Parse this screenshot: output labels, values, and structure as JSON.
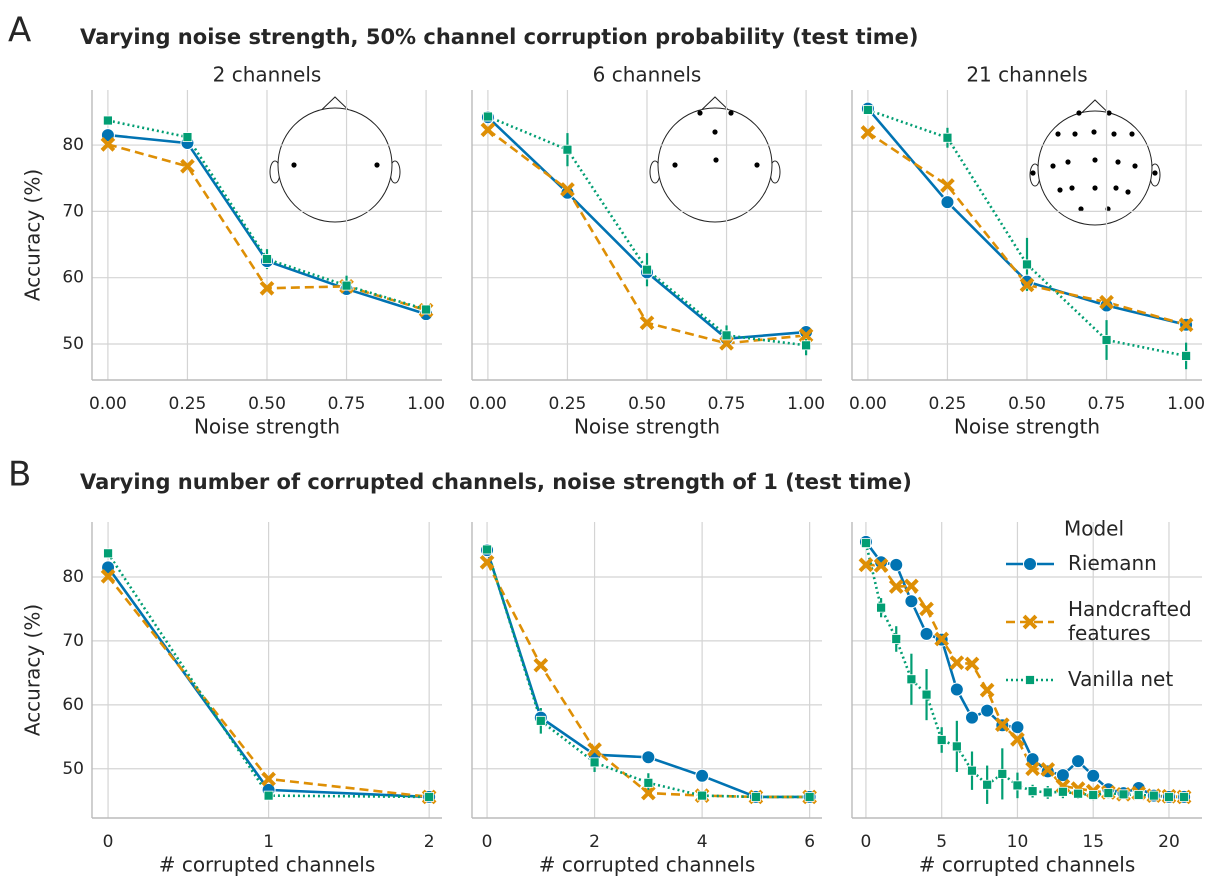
{
  "figure": {
    "panels": [
      {
        "label": "A",
        "title": "Varying noise strength, 50% channel corruption probability (test time)"
      },
      {
        "label": "B",
        "title": "Varying number of corrupted channels, noise strength of 1 (test time)"
      }
    ]
  },
  "chart_data": [
    {
      "type": "line",
      "title": "2 channels",
      "xlabel": "Noise strength",
      "ylabel": "Accuracy (%)",
      "x": [
        0,
        0.25,
        0.5,
        0.75,
        1
      ],
      "xlim": [
        -0.05,
        1.05
      ],
      "ylim": [
        44.57,
        88.3
      ],
      "xticks": [
        {
          "value": 0,
          "label": "0.00"
        },
        {
          "value": 0.25,
          "label": "0.25"
        },
        {
          "value": 0.5,
          "label": "0.50"
        },
        {
          "value": 0.75,
          "label": "0.75"
        },
        {
          "value": 1,
          "label": "1.00"
        }
      ],
      "yticks": [
        50,
        60,
        70,
        80
      ],
      "grid": true,
      "series": [
        {
          "name": "Riemann",
          "color": "#0173b2",
          "marker": "circle",
          "dash": "solid",
          "values": [
            81.5,
            80.3,
            62.5,
            58.3,
            54.5
          ]
        },
        {
          "name": "Handcrafted features",
          "color": "#de8f05",
          "marker": "x",
          "dash": "dashed",
          "values": [
            80.1,
            76.8,
            58.4,
            58.7,
            55.1
          ]
        },
        {
          "name": "Vanilla net",
          "color": "#029e73",
          "marker": "square",
          "dash": "dotted",
          "values": [
            83.7,
            81.2,
            62.8,
            58.8,
            55.2
          ],
          "errors": [
            0.5,
            0.5,
            1.5,
            1.5,
            0.5
          ]
        }
      ]
    },
    {
      "type": "line",
      "title": "6 channels",
      "xlabel": "Noise strength",
      "x": [
        0,
        0.25,
        0.5,
        0.75,
        1
      ],
      "xlim": [
        -0.05,
        1.05
      ],
      "ylim": [
        44.57,
        88.3
      ],
      "xticks": [
        {
          "value": 0,
          "label": "0.00"
        },
        {
          "value": 0.25,
          "label": "0.25"
        },
        {
          "value": 0.5,
          "label": "0.50"
        },
        {
          "value": 0.75,
          "label": "0.75"
        },
        {
          "value": 1,
          "label": "1.00"
        }
      ],
      "yticks": [
        50,
        60,
        70,
        80
      ],
      "grid": true,
      "series": [
        {
          "name": "Riemann",
          "color": "#0173b2",
          "marker": "circle",
          "dash": "solid",
          "values": [
            84.2,
            72.8,
            60.8,
            50.8,
            51.8
          ]
        },
        {
          "name": "Handcrafted features",
          "color": "#de8f05",
          "marker": "x",
          "dash": "dashed",
          "values": [
            82.3,
            73.3,
            53.2,
            50.1,
            51.3
          ]
        },
        {
          "name": "Vanilla net",
          "color": "#029e73",
          "marker": "square",
          "dash": "dotted",
          "values": [
            84.3,
            79.3,
            61.2,
            51.3,
            49.8
          ],
          "errors": [
            0.5,
            2.5,
            2.5,
            1.5,
            1.5
          ]
        }
      ]
    },
    {
      "type": "line",
      "title": "21 channels",
      "xlabel": "Noise strength",
      "x": [
        0,
        0.25,
        0.5,
        0.75,
        1
      ],
      "xlim": [
        -0.05,
        1.05
      ],
      "ylim": [
        44.57,
        88.3
      ],
      "xticks": [
        {
          "value": 0,
          "label": "0.00"
        },
        {
          "value": 0.25,
          "label": "0.25"
        },
        {
          "value": 0.5,
          "label": "0.50"
        },
        {
          "value": 0.75,
          "label": "0.75"
        },
        {
          "value": 1,
          "label": "1.00"
        }
      ],
      "yticks": [
        50,
        60,
        70,
        80
      ],
      "grid": true,
      "series": [
        {
          "name": "Riemann",
          "color": "#0173b2",
          "marker": "circle",
          "dash": "solid",
          "values": [
            85.5,
            71.4,
            59.4,
            55.8,
            52.9
          ]
        },
        {
          "name": "Handcrafted features",
          "color": "#de8f05",
          "marker": "x",
          "dash": "dashed",
          "values": [
            81.9,
            73.9,
            58.9,
            56.3,
            52.9
          ]
        },
        {
          "name": "Vanilla net",
          "color": "#029e73",
          "marker": "square",
          "dash": "dotted",
          "values": [
            85.3,
            81.1,
            62.0,
            50.6,
            48.2
          ],
          "errors": [
            0.5,
            1.5,
            4,
            3,
            2
          ]
        }
      ]
    },
    {
      "type": "line",
      "xlabel": "# corrupted channels",
      "ylabel": "Accuracy (%)",
      "x": [
        0,
        1,
        2
      ],
      "xlim": [
        -0.1,
        2.08
      ],
      "ylim": [
        42.3,
        88.6
      ],
      "xticks": [
        0,
        1,
        2
      ],
      "yticks": [
        50,
        60,
        70,
        80
      ],
      "grid": true,
      "series": [
        {
          "name": "Riemann",
          "color": "#0173b2",
          "marker": "circle",
          "dash": "solid",
          "values": [
            81.5,
            46.7,
            45.6
          ]
        },
        {
          "name": "Handcrafted features",
          "color": "#de8f05",
          "marker": "x",
          "dash": "dashed",
          "values": [
            80.1,
            48.4,
            45.6
          ]
        },
        {
          "name": "Vanilla net",
          "color": "#029e73",
          "marker": "square",
          "dash": "dotted",
          "values": [
            83.7,
            45.8,
            45.6
          ],
          "errors": [
            0.3,
            0.3,
            0.3
          ]
        }
      ]
    },
    {
      "type": "line",
      "xlabel": "# corrupted channels",
      "x": [
        0,
        1,
        2,
        3,
        4,
        5,
        6
      ],
      "xlim": [
        -0.28,
        6.23
      ],
      "ylim": [
        42.3,
        88.6
      ],
      "xticks": [
        0,
        2,
        4,
        6
      ],
      "yticks": [
        50,
        60,
        70,
        80
      ],
      "grid": true,
      "series": [
        {
          "name": "Riemann",
          "color": "#0173b2",
          "marker": "circle",
          "dash": "solid",
          "values": [
            84.2,
            58.0,
            52.2,
            51.8,
            48.9,
            45.6,
            45.6
          ]
        },
        {
          "name": "Handcrafted features",
          "color": "#de8f05",
          "marker": "x",
          "dash": "dashed",
          "values": [
            82.3,
            66.2,
            53.0,
            46.2,
            45.8,
            45.6,
            45.6
          ]
        },
        {
          "name": "Vanilla net",
          "color": "#029e73",
          "marker": "square",
          "dash": "dotted",
          "values": [
            84.3,
            57.5,
            51.0,
            47.8,
            45.8,
            45.6,
            45.6
          ],
          "errors": [
            0.5,
            2,
            1.5,
            1.5,
            0.5,
            0.3,
            0.3
          ]
        }
      ]
    },
    {
      "type": "line",
      "xlabel": "# corrupted channels",
      "x": [
        0,
        1,
        2,
        3,
        4,
        5,
        6,
        7,
        8,
        9,
        10,
        11,
        12,
        13,
        14,
        15,
        16,
        17,
        18,
        19,
        20,
        21
      ],
      "xlim": [
        -0.92,
        22.18
      ],
      "ylim": [
        42.3,
        88.6
      ],
      "xticks": [
        0,
        5,
        10,
        15,
        20
      ],
      "yticks": [
        50,
        60,
        70,
        80
      ],
      "grid": true,
      "legend": "upper right",
      "legend_title": "Model",
      "series": [
        {
          "name": "Riemann",
          "color": "#0173b2",
          "marker": "circle",
          "dash": "solid",
          "values": [
            85.5,
            82.3,
            81.9,
            76.2,
            71.1,
            70.2,
            62.4,
            58.0,
            59.1,
            56.8,
            56.5,
            51.5,
            49.6,
            49.0,
            51.2,
            48.9,
            46.8,
            46.2,
            47.0,
            45.8,
            45.6,
            45.6
          ]
        },
        {
          "name": "Handcrafted features",
          "color": "#de8f05",
          "marker": "x",
          "dash": "dashed",
          "values": [
            81.9,
            81.8,
            78.5,
            78.6,
            75.0,
            70.3,
            66.6,
            66.4,
            62.3,
            56.9,
            54.6,
            50.0,
            49.9,
            47.3,
            46.9,
            46.5,
            46.3,
            46.0,
            46.2,
            45.8,
            45.7,
            45.6
          ]
        },
        {
          "name": "Vanilla net",
          "color": "#029e73",
          "marker": "square",
          "dash": "dotted",
          "values": [
            85.3,
            75.2,
            70.3,
            64.0,
            61.6,
            54.5,
            53.5,
            49.7,
            47.5,
            49.2,
            47.4,
            46.5,
            46.3,
            46.4,
            46.1,
            45.9,
            46.2,
            46.0,
            45.9,
            45.8,
            45.6,
            45.6
          ],
          "errors": [
            0.5,
            1.5,
            2,
            4,
            4,
            2,
            4,
            3,
            3,
            4,
            2,
            1,
            1,
            1,
            0.8,
            0.8,
            0.8,
            0.5,
            0.5,
            0.5,
            0.3,
            0.3
          ]
        }
      ]
    }
  ]
}
